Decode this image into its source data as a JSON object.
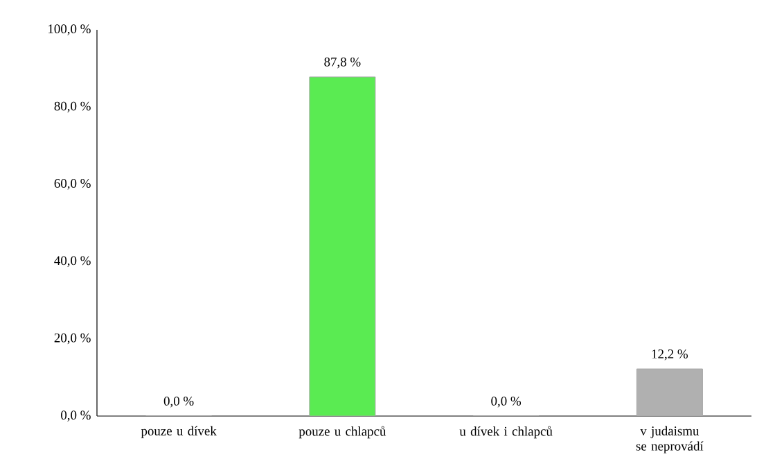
{
  "chart_data": {
    "type": "bar",
    "categories": [
      "pouze u dívek",
      "pouze u chlapců",
      "u dívek i chlapců",
      "v judaismu se neprovádí"
    ],
    "values": [
      0.0,
      87.8,
      0.0,
      12.2
    ],
    "colors": [
      "#5aeb52",
      "#5aeb52",
      "#5aeb52",
      "#b0b0b0"
    ],
    "value_labels": [
      "0,0 %",
      "87,8 %",
      "0,0 %",
      "12,2 %"
    ],
    "ylim": [
      0,
      100
    ],
    "yticks": [
      {
        "value": 0,
        "label": "0,0 %"
      },
      {
        "value": 20,
        "label": "20,0 %"
      },
      {
        "value": 40,
        "label": "40,0 %"
      },
      {
        "value": 60,
        "label": "60,0 %"
      },
      {
        "value": 80,
        "label": "80,0 %"
      },
      {
        "value": 100,
        "label": "100,0 %"
      }
    ]
  }
}
